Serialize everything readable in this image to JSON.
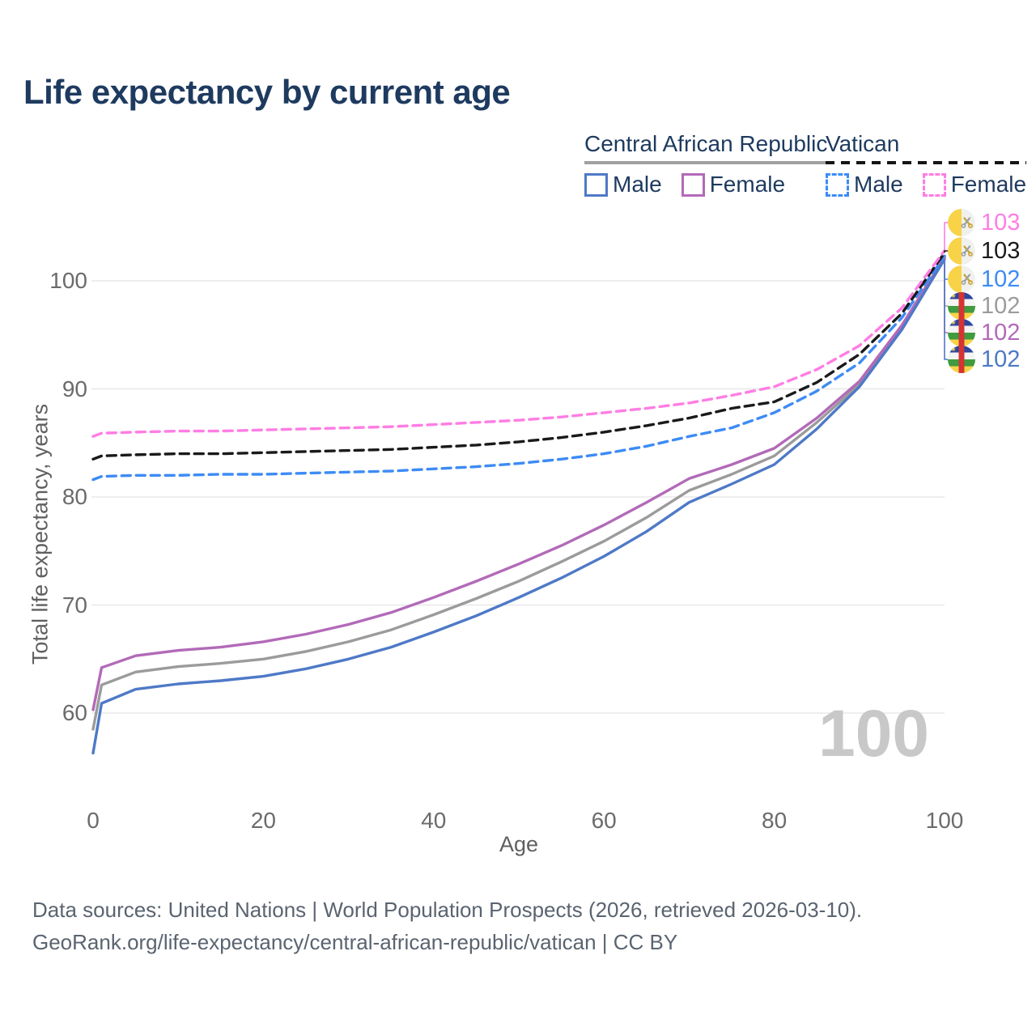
{
  "title": "Life expectancy by current age",
  "legend": {
    "groups": [
      {
        "label": "Central African Republic",
        "line_style": "solid",
        "underline_color": "#a0a0a0",
        "items": [
          {
            "label": "Male",
            "color": "#4e79c7"
          },
          {
            "label": "Female",
            "color": "#b26ab8"
          }
        ]
      },
      {
        "label": "Vatican",
        "line_style": "dashed",
        "underline_color": "#1a1a1a",
        "items": [
          {
            "label": "Male",
            "color": "#3d8bf5"
          },
          {
            "label": "Female",
            "color": "#ff7de4"
          }
        ]
      }
    ]
  },
  "chart_data": {
    "type": "line",
    "title": "Life expectancy by current age",
    "xlabel": "Age",
    "ylabel": "Total life expectancy, years",
    "xlim": [
      0,
      100
    ],
    "ylim": [
      55,
      105
    ],
    "xticks": [
      0,
      20,
      40,
      60,
      80,
      100
    ],
    "yticks": [
      60,
      70,
      80,
      90,
      100
    ],
    "grid": "horizontal",
    "legend_position": "top-right",
    "hover_age_indicator": "100",
    "x": [
      0,
      1,
      5,
      10,
      15,
      20,
      25,
      30,
      35,
      40,
      45,
      50,
      55,
      60,
      65,
      70,
      75,
      80,
      85,
      90,
      95,
      100
    ],
    "series": [
      {
        "id": "car_total",
        "name": "Central African Republic — Total",
        "country": "Central African Republic",
        "sex": "Both",
        "color": "#9b9b9b",
        "dashed": false,
        "values": [
          58.5,
          62.6,
          63.8,
          64.3,
          64.6,
          65.0,
          65.7,
          66.6,
          67.7,
          69.1,
          70.6,
          72.2,
          74.0,
          75.9,
          78.1,
          80.6,
          82.1,
          83.8,
          86.9,
          90.4,
          95.7,
          102.1
        ]
      },
      {
        "id": "car_female",
        "name": "Central African Republic — Female",
        "country": "Central African Republic",
        "sex": "Female",
        "color": "#b26ab8",
        "dashed": false,
        "values": [
          60.3,
          64.2,
          65.3,
          65.8,
          66.1,
          66.6,
          67.3,
          68.2,
          69.3,
          70.7,
          72.2,
          73.8,
          75.5,
          77.4,
          79.5,
          81.7,
          83.0,
          84.5,
          87.3,
          90.7,
          95.9,
          102.2
        ]
      },
      {
        "id": "car_male",
        "name": "Central African Republic — Male",
        "country": "Central African Republic",
        "sex": "Male",
        "color": "#4e79c7",
        "dashed": false,
        "values": [
          56.3,
          60.9,
          62.2,
          62.7,
          63.0,
          63.4,
          64.1,
          65.0,
          66.1,
          67.5,
          69.0,
          70.7,
          72.5,
          74.5,
          76.8,
          79.5,
          81.2,
          83.0,
          86.3,
          90.2,
          95.5,
          102.0
        ]
      },
      {
        "id": "vatican_male",
        "name": "Vatican — Male",
        "country": "Vatican",
        "sex": "Male",
        "color": "#3d8bf5",
        "dashed": true,
        "values": [
          81.6,
          81.9,
          82.0,
          82.0,
          82.1,
          82.1,
          82.2,
          82.3,
          82.4,
          82.6,
          82.8,
          83.1,
          83.5,
          84.0,
          84.7,
          85.6,
          86.4,
          87.8,
          89.8,
          92.4,
          96.6,
          102.3
        ]
      },
      {
        "id": "vatican_total",
        "name": "Vatican — Total",
        "country": "Vatican",
        "sex": "Both",
        "color": "#1a1a1a",
        "dashed": true,
        "values": [
          83.5,
          83.8,
          83.9,
          84.0,
          84.0,
          84.1,
          84.2,
          84.3,
          84.4,
          84.6,
          84.8,
          85.1,
          85.5,
          86.0,
          86.6,
          87.3,
          88.2,
          88.8,
          90.6,
          93.2,
          97.0,
          102.6
        ]
      },
      {
        "id": "vatican_female",
        "name": "Vatican — Female",
        "country": "Vatican",
        "sex": "Female",
        "color": "#ff7de4",
        "dashed": true,
        "values": [
          85.6,
          85.9,
          86.0,
          86.1,
          86.1,
          86.2,
          86.3,
          86.4,
          86.5,
          86.7,
          86.9,
          87.1,
          87.4,
          87.8,
          88.2,
          88.7,
          89.4,
          90.2,
          91.8,
          94.0,
          97.5,
          102.8
        ]
      }
    ]
  },
  "end_labels": [
    {
      "value": "103",
      "color": "#ff7de4",
      "flag": "vatican-flag",
      "series": "vatican_female"
    },
    {
      "value": "103",
      "color": "#1a1a1a",
      "flag": "vatican-flag",
      "series": "vatican_total"
    },
    {
      "value": "102",
      "color": "#3d8bf5",
      "flag": "vatican-flag",
      "series": "vatican_male"
    },
    {
      "value": "102",
      "color": "#9b9b9b",
      "flag": "car-flag",
      "series": "car_total"
    },
    {
      "value": "102",
      "color": "#b26ab8",
      "flag": "car-flag",
      "series": "car_female"
    },
    {
      "value": "102",
      "color": "#4e79c7",
      "flag": "car-flag",
      "series": "car_male"
    }
  ],
  "watermark": "100",
  "footer": {
    "line1": "Data sources: United Nations | World Population Prospects (2026, retrieved 2026-03-10).",
    "line2": "GeoRank.org/life-expectancy/central-african-republic/vatican | CC BY"
  }
}
